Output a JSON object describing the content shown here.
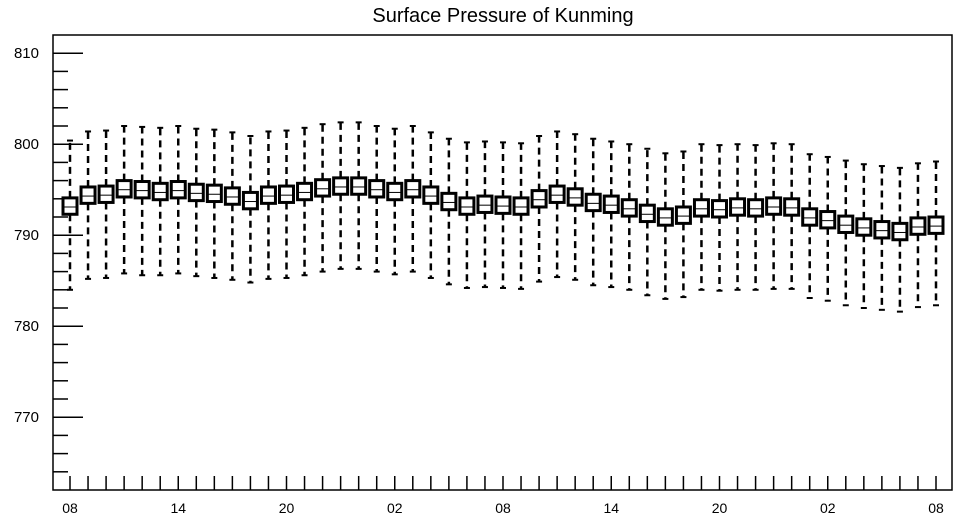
{
  "chart_data": {
    "type": "box",
    "title": "Surface Pressure of Kunming",
    "xlabel": "",
    "ylabel": "",
    "ylim": [
      762,
      812
    ],
    "yticks": [
      770,
      780,
      790,
      800,
      810
    ],
    "xtick_labels": [
      "08",
      "14",
      "20",
      "02",
      "08",
      "14",
      "20",
      "02",
      "08"
    ],
    "x_interval_hours": 1,
    "n_points": 49,
    "grid": false,
    "series": [
      {
        "median": [
          793.1,
          794.3,
          794.4,
          795.0,
          794.9,
          794.7,
          794.9,
          794.6,
          794.5,
          794.2,
          793.7,
          794.3,
          794.4,
          794.7,
          795.1,
          795.3,
          795.3,
          795.0,
          794.7,
          795.0,
          794.3,
          793.6,
          793.1,
          793.3,
          793.2,
          793.1,
          793.9,
          794.4,
          794.1,
          793.5,
          793.3,
          792.9,
          792.3,
          791.9,
          792.1,
          792.9,
          792.8,
          793.0,
          792.9,
          793.1,
          793.0,
          791.9,
          791.6,
          791.1,
          790.8,
          790.5,
          790.3,
          790.9,
          791.0
        ],
        "q1": [
          792.3,
          793.5,
          793.6,
          794.2,
          794.1,
          793.9,
          794.1,
          793.8,
          793.7,
          793.4,
          792.9,
          793.5,
          793.6,
          793.9,
          794.3,
          794.5,
          794.5,
          794.2,
          793.9,
          794.2,
          793.5,
          792.8,
          792.3,
          792.5,
          792.4,
          792.3,
          793.1,
          793.6,
          793.3,
          792.7,
          792.5,
          792.1,
          791.5,
          791.1,
          791.3,
          792.1,
          792.0,
          792.2,
          792.1,
          792.3,
          792.2,
          791.1,
          790.8,
          790.3,
          790.0,
          789.7,
          789.5,
          790.1,
          790.2
        ],
        "q3": [
          794.1,
          795.3,
          795.4,
          796.0,
          795.9,
          795.7,
          795.9,
          795.6,
          795.5,
          795.2,
          794.7,
          795.3,
          795.4,
          795.7,
          796.1,
          796.3,
          796.3,
          796.0,
          795.7,
          796.0,
          795.3,
          794.6,
          794.1,
          794.3,
          794.2,
          794.1,
          794.9,
          795.4,
          795.1,
          794.5,
          794.3,
          793.9,
          793.3,
          792.9,
          793.1,
          793.9,
          793.8,
          794.0,
          793.9,
          794.1,
          794.0,
          792.9,
          792.6,
          792.1,
          791.8,
          791.5,
          791.3,
          791.9,
          792.0
        ],
        "min": [
          784.0,
          785.2,
          785.3,
          785.8,
          785.6,
          785.6,
          785.8,
          785.5,
          785.3,
          785.1,
          784.8,
          785.2,
          785.3,
          785.6,
          786.0,
          786.3,
          786.3,
          786.0,
          785.7,
          786.0,
          785.3,
          784.6,
          784.2,
          784.3,
          784.2,
          784.1,
          784.9,
          785.4,
          785.1,
          784.5,
          784.3,
          784.0,
          783.4,
          783.0,
          783.2,
          784.0,
          783.9,
          784.0,
          784.0,
          784.1,
          784.1,
          783.1,
          782.8,
          782.3,
          782.0,
          781.8,
          781.6,
          782.1,
          782.3
        ],
        "max": [
          800.4,
          801.4,
          801.5,
          802.0,
          801.9,
          801.8,
          802.0,
          801.7,
          801.6,
          801.3,
          800.9,
          801.4,
          801.5,
          801.8,
          802.2,
          802.4,
          802.4,
          802.0,
          801.7,
          802.0,
          801.3,
          800.6,
          800.2,
          800.3,
          800.2,
          800.1,
          800.9,
          801.4,
          801.1,
          800.6,
          800.3,
          800.0,
          799.5,
          799.0,
          799.2,
          800.0,
          799.9,
          800.0,
          799.9,
          800.1,
          800.0,
          798.9,
          798.6,
          798.2,
          797.8,
          797.6,
          797.4,
          797.9,
          798.1
        ]
      }
    ]
  }
}
